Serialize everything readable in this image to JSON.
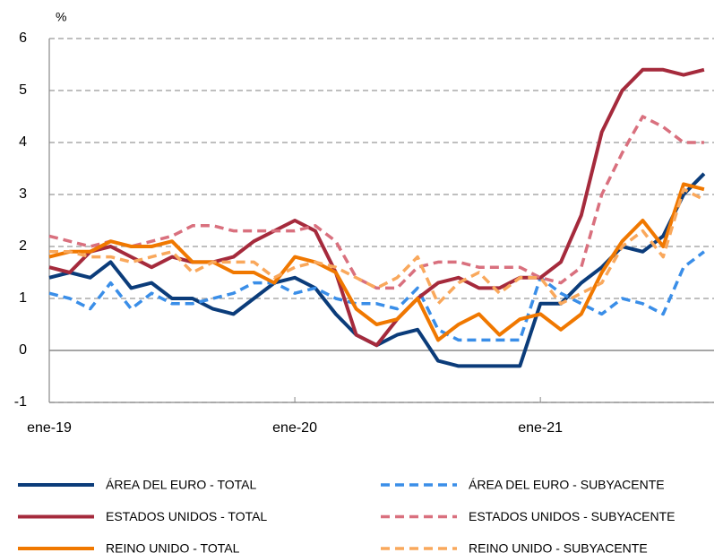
{
  "chart_data": {
    "type": "line",
    "y_unit": "%",
    "categories": [
      "ene-19",
      null,
      null,
      null,
      null,
      null,
      null,
      null,
      null,
      null,
      null,
      null,
      "ene-20",
      null,
      null,
      null,
      null,
      null,
      null,
      null,
      null,
      null,
      null,
      null,
      "ene-21",
      null,
      null,
      null,
      null,
      null,
      null,
      null,
      null
    ],
    "ylim": [
      -1,
      6
    ],
    "yticks": [
      -1,
      0,
      1,
      2,
      3,
      4,
      5,
      6
    ],
    "grid": true,
    "series": [
      {
        "name": "ÁREA DEL EURO - TOTAL",
        "color": "#0b3c7a",
        "dashed": false,
        "values": [
          1.4,
          1.5,
          1.4,
          1.7,
          1.2,
          1.3,
          1.0,
          1.0,
          0.8,
          0.7,
          1.0,
          1.3,
          1.4,
          1.2,
          0.7,
          0.3,
          0.1,
          0.3,
          0.4,
          -0.2,
          -0.3,
          -0.3,
          -0.3,
          -0.3,
          0.9,
          0.9,
          1.3,
          1.6,
          2.0,
          1.9,
          2.2,
          3.0,
          3.4
        ]
      },
      {
        "name": "ÁREA DEL EURO - SUBYACENTE",
        "color": "#3a8ee8",
        "dashed": true,
        "values": [
          1.1,
          1.0,
          0.8,
          1.3,
          0.8,
          1.1,
          0.9,
          0.9,
          1.0,
          1.1,
          1.3,
          1.3,
          1.1,
          1.2,
          1.0,
          0.9,
          0.9,
          0.8,
          1.2,
          0.4,
          0.2,
          0.2,
          0.2,
          0.2,
          1.4,
          1.1,
          0.9,
          0.7,
          1.0,
          0.9,
          0.7,
          1.6,
          1.9
        ]
      },
      {
        "name": "ESTADOS UNIDOS - TOTAL",
        "color": "#a52a3c",
        "dashed": false,
        "values": [
          1.6,
          1.5,
          1.9,
          2.0,
          1.8,
          1.6,
          1.8,
          1.7,
          1.7,
          1.8,
          2.1,
          2.3,
          2.5,
          2.3,
          1.5,
          0.3,
          0.1,
          0.6,
          1.0,
          1.3,
          1.4,
          1.2,
          1.2,
          1.4,
          1.4,
          1.7,
          2.6,
          4.2,
          5.0,
          5.4,
          5.4,
          5.3,
          5.4
        ]
      },
      {
        "name": "ESTADOS UNIDOS - SUBYACENTE",
        "color": "#d9707e",
        "dashed": true,
        "values": [
          2.2,
          2.1,
          2.0,
          2.1,
          2.0,
          2.1,
          2.2,
          2.4,
          2.4,
          2.3,
          2.3,
          2.3,
          2.3,
          2.4,
          2.1,
          1.4,
          1.2,
          1.2,
          1.6,
          1.7,
          1.7,
          1.6,
          1.6,
          1.6,
          1.4,
          1.3,
          1.6,
          3.0,
          3.8,
          4.5,
          4.3,
          4.0,
          4.0
        ]
      },
      {
        "name": "REINO UNIDO - TOTAL",
        "color": "#f07800",
        "dashed": false,
        "values": [
          1.8,
          1.9,
          1.9,
          2.1,
          2.0,
          2.0,
          2.1,
          1.7,
          1.7,
          1.5,
          1.5,
          1.3,
          1.8,
          1.7,
          1.5,
          0.8,
          0.5,
          0.6,
          1.0,
          0.2,
          0.5,
          0.7,
          0.3,
          0.6,
          0.7,
          0.4,
          0.7,
          1.5,
          2.1,
          2.5,
          2.0,
          3.2,
          3.1
        ]
      },
      {
        "name": "REINO UNIDO - SUBYACENTE",
        "color": "#f9a85c",
        "dashed": true,
        "values": [
          1.9,
          1.9,
          1.8,
          1.8,
          1.7,
          1.8,
          1.9,
          1.5,
          1.7,
          1.7,
          1.7,
          1.4,
          1.6,
          1.7,
          1.6,
          1.4,
          1.2,
          1.4,
          1.8,
          0.9,
          1.3,
          1.5,
          1.1,
          1.4,
          1.4,
          0.9,
          1.1,
          1.3,
          2.0,
          2.3,
          1.8,
          3.1,
          2.9
        ]
      }
    ]
  }
}
